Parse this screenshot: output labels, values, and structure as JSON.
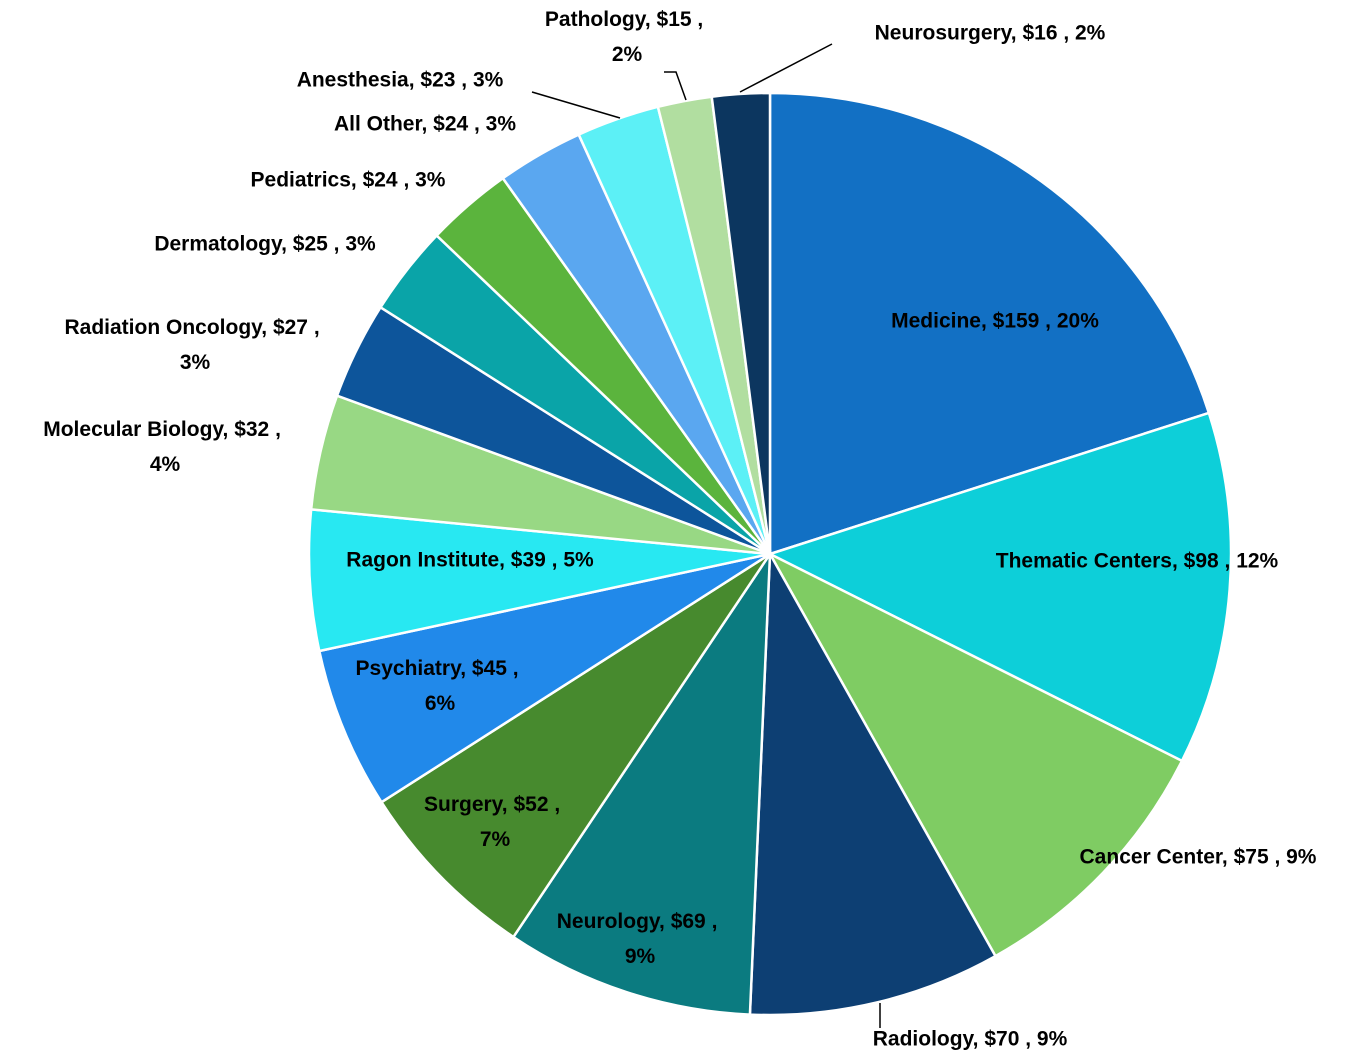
{
  "chart_data": {
    "type": "pie",
    "labels": [
      "Medicine, $159 , 20%",
      "Thematic Centers, $98 , 12%",
      "Cancer Center, $75 , 9%",
      "Radiology, $70 , 9%",
      "Neurology, $69 , 9%",
      "Surgery, $52 , 7%",
      "Psychiatry, $45 , 6%",
      "Ragon Institute, $39 , 5%",
      "Molecular Biology, $32 , 4%",
      "Radiation Oncology, $27 , 3%",
      "Dermatology, $25 , 3%",
      "Pediatrics, $24 , 3%",
      "All Other, $24 , 3%",
      "Anesthesia, $23 , 3%",
      "Pathology, $15 , 2%",
      "Neurosurgery, $16 , 2%"
    ],
    "values": [
      159,
      98,
      75,
      70,
      69,
      52,
      45,
      39,
      32,
      27,
      25,
      24,
      24,
      23,
      15,
      16
    ],
    "colors": [
      "#1270c4",
      "#0dcfd9",
      "#7fcc63",
      "#0d3f73",
      "#0b7b80",
      "#478a2e",
      "#2189ea",
      "#28e8f2",
      "#98d884",
      "#0d559b",
      "#0aa4a8",
      "#5bb43d",
      "#5aa7f0",
      "#5cf0f6",
      "#b1dea0",
      "#0c365f"
    ]
  }
}
